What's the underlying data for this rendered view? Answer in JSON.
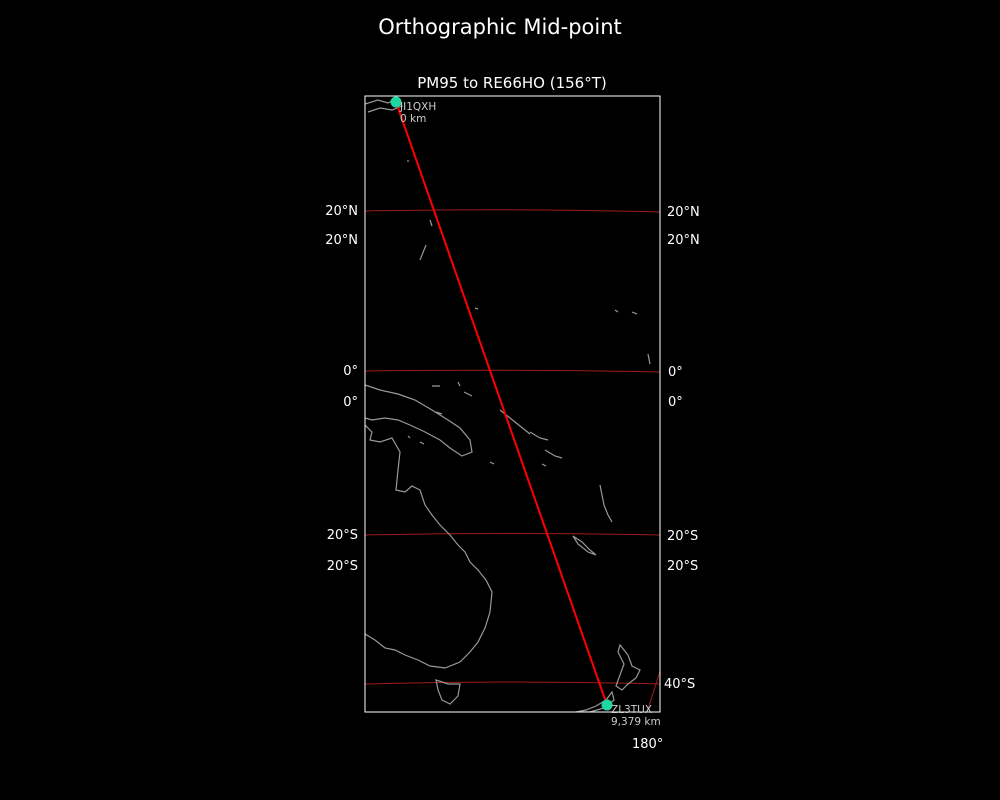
{
  "figure": {
    "suptitle": "Orthographic Mid-point",
    "title": "PM95 to RE66HO (156°T)"
  },
  "map": {
    "projection": "orthographic",
    "background": "#000000",
    "coastline_color": "#999999",
    "gridline_color": "#a01c1c",
    "path_color": "#ff0000",
    "marker_color": "#1ed6a0",
    "lat_labels_left": [
      "20°N",
      "20°N",
      "0°",
      "0°",
      "20°S",
      "20°S"
    ],
    "lat_labels_right": [
      "20°N",
      "20°N",
      "0°",
      "0°",
      "20°S",
      "20°S",
      "40°S"
    ],
    "lon_labels": [
      "180°"
    ],
    "start": {
      "call": "JI1QXH",
      "distance": "0 km"
    },
    "end": {
      "call": "ZL3TUX",
      "distance": "9,379 km"
    }
  }
}
